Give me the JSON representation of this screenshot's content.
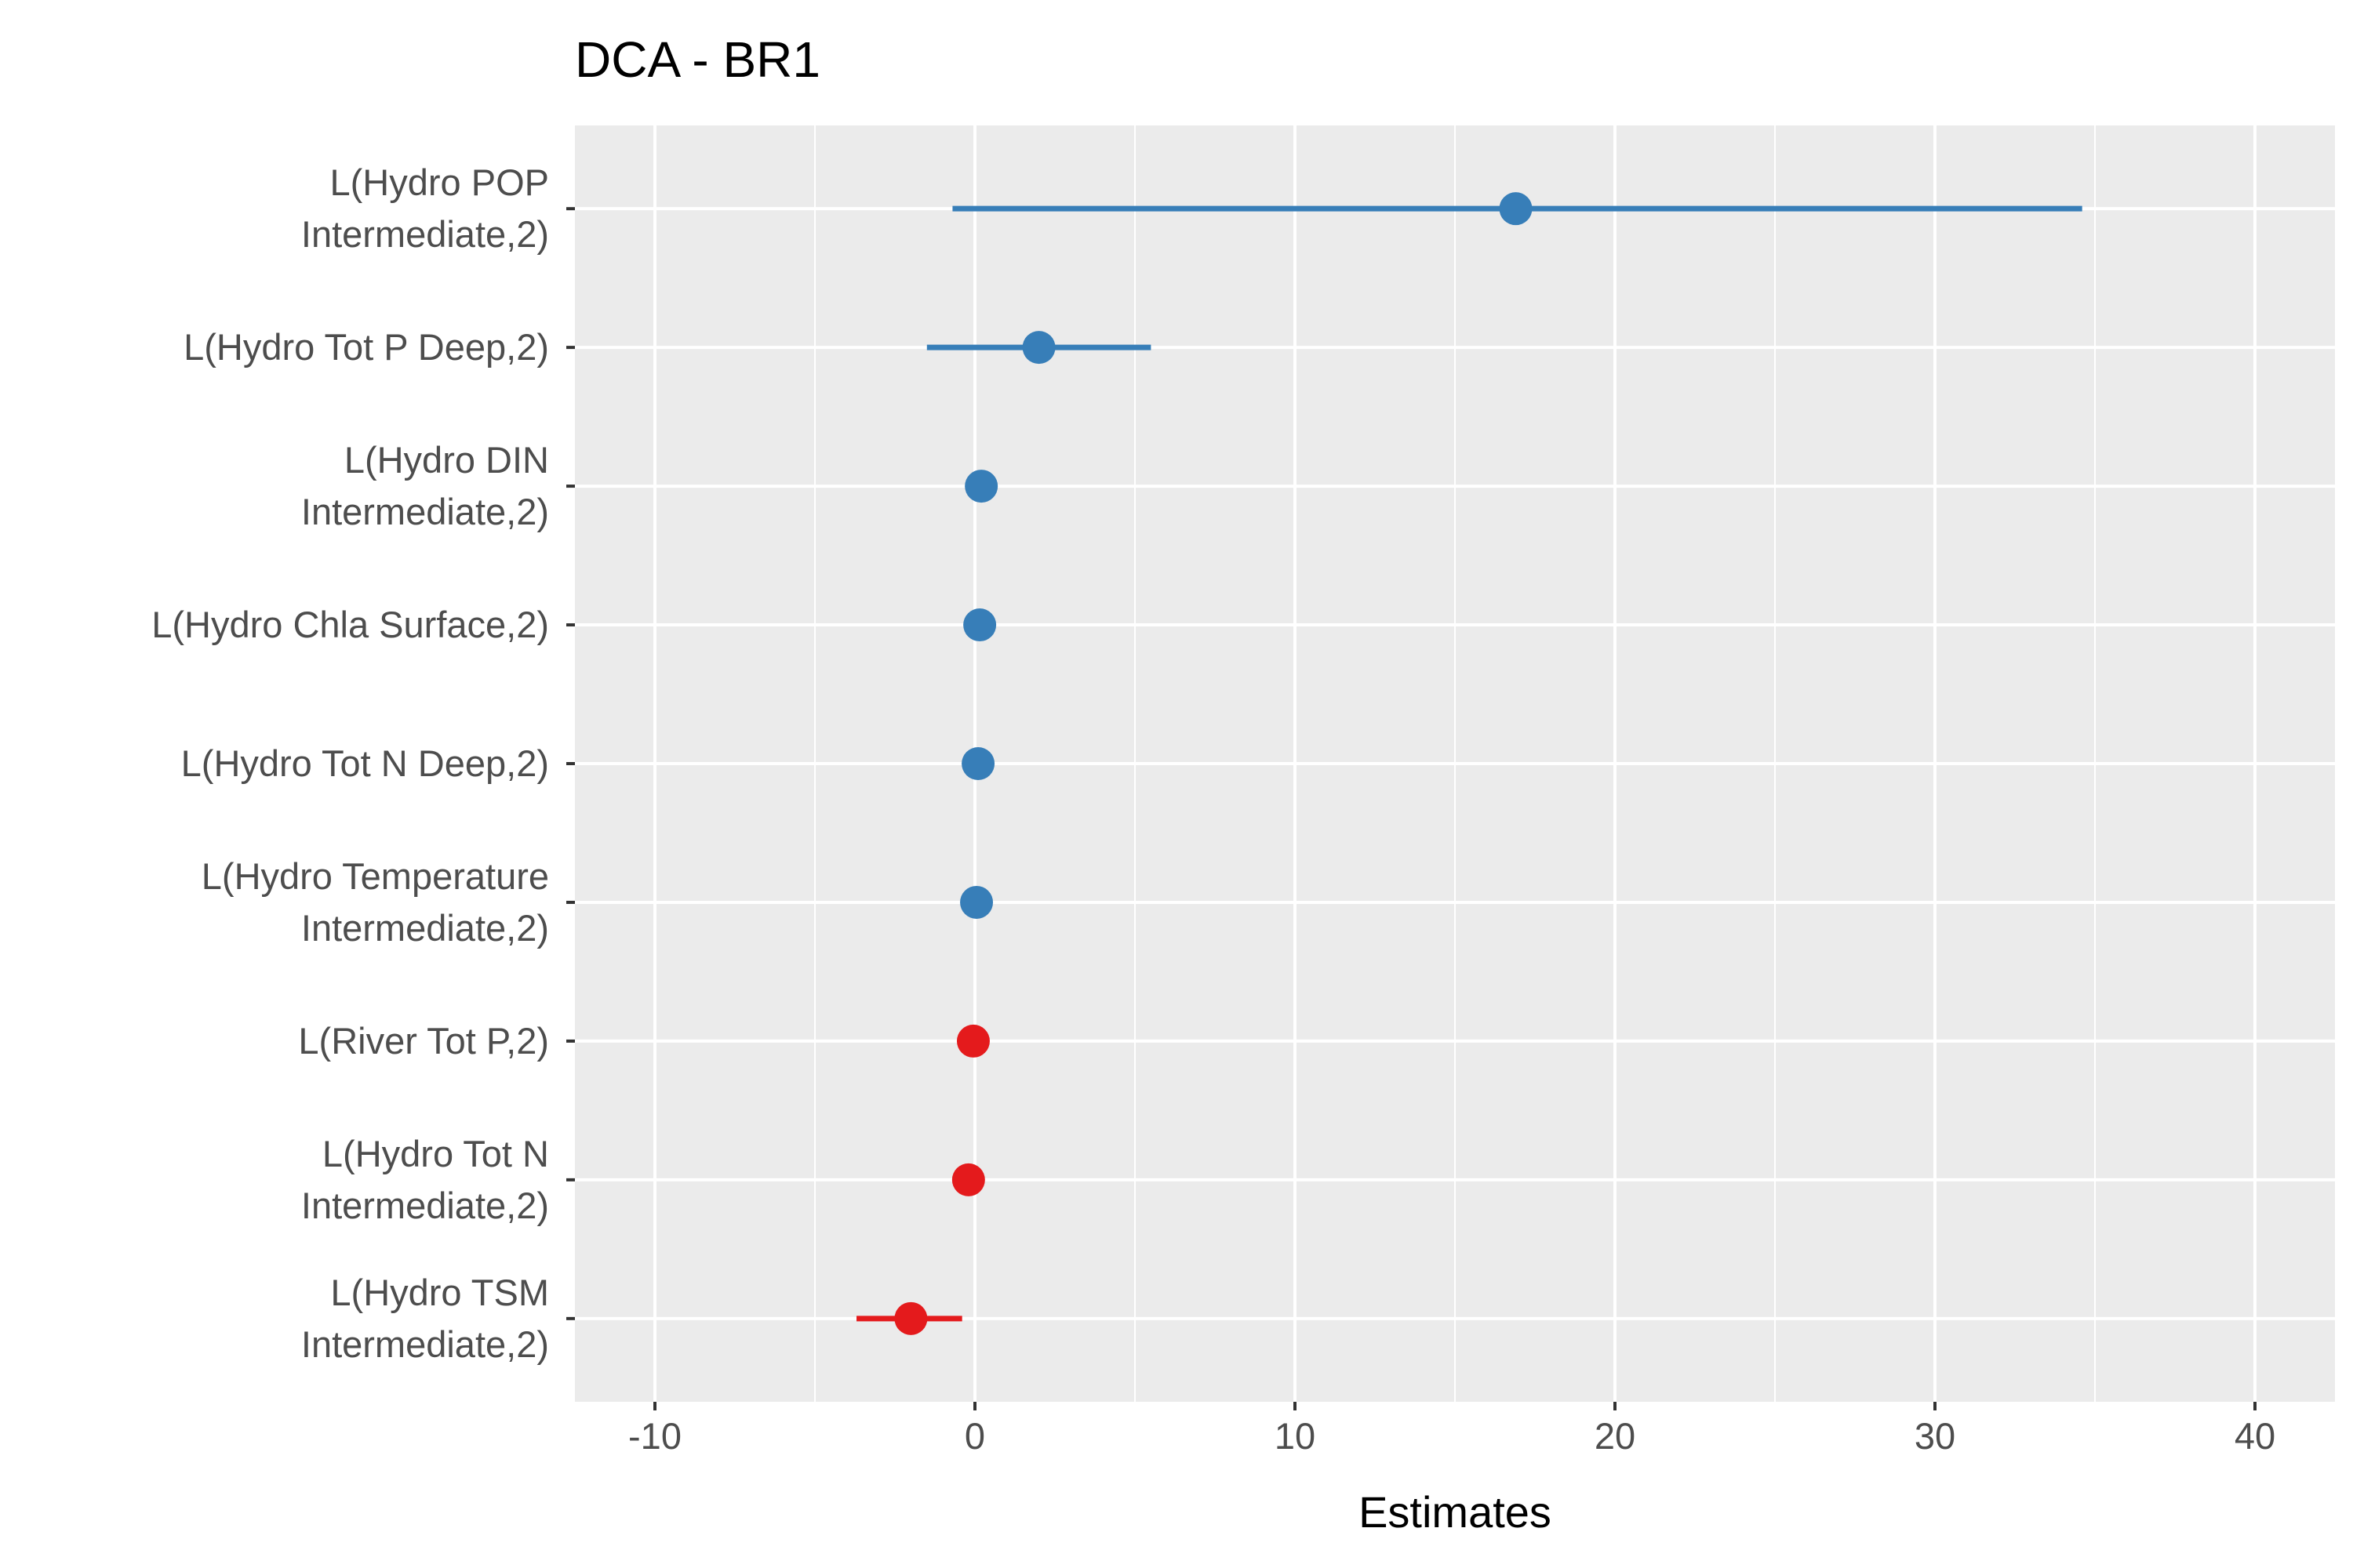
{
  "chart_data": {
    "type": "scatter",
    "subtype": "coefficient-plot",
    "title": "DCA - BR1",
    "xlabel": "Estimates",
    "ylabel": "",
    "xlim": [
      -12.5,
      42.5
    ],
    "xticks": [
      -10,
      0,
      10,
      20,
      30,
      40
    ],
    "xtick_labels": [
      "-10",
      "0",
      "10",
      "20",
      "30",
      "40"
    ],
    "grid": true,
    "legend": "none",
    "colors": {
      "positive": "#377EB8",
      "negative": "#E41A1C",
      "panel": "#EBEBEB",
      "grid": "#FFFFFF"
    },
    "points": [
      {
        "label": [
          "L(Hydro POP",
          "Intermediate,2)"
        ],
        "estimate": 16.9,
        "ci_low": -0.7,
        "ci_high": 34.6,
        "sign": "positive"
      },
      {
        "label": [
          "L(Hydro Tot P Deep,2)"
        ],
        "estimate": 2.0,
        "ci_low": -1.5,
        "ci_high": 5.5,
        "sign": "positive"
      },
      {
        "label": [
          "L(Hydro DIN",
          "Intermediate,2)"
        ],
        "estimate": 0.2,
        "ci_low": 0.1,
        "ci_high": 0.3,
        "sign": "positive"
      },
      {
        "label": [
          "L(Hydro Chla Surface,2)"
        ],
        "estimate": 0.15,
        "ci_low": 0.05,
        "ci_high": 0.25,
        "sign": "positive"
      },
      {
        "label": [
          "L(Hydro Tot N Deep,2)"
        ],
        "estimate": 0.1,
        "ci_low": 0.0,
        "ci_high": 0.2,
        "sign": "positive"
      },
      {
        "label": [
          "L(Hydro Temperature",
          "Intermediate,2)"
        ],
        "estimate": 0.05,
        "ci_low": -0.05,
        "ci_high": 0.15,
        "sign": "positive"
      },
      {
        "label": [
          "L(River Tot P,2)"
        ],
        "estimate": -0.05,
        "ci_low": -0.15,
        "ci_high": 0.05,
        "sign": "negative"
      },
      {
        "label": [
          "L(Hydro Tot N",
          "Intermediate,2)"
        ],
        "estimate": -0.2,
        "ci_low": -0.35,
        "ci_high": -0.05,
        "sign": "negative"
      },
      {
        "label": [
          "L(Hydro TSM",
          "Intermediate,2)"
        ],
        "estimate": -2.0,
        "ci_low": -3.7,
        "ci_high": -0.4,
        "sign": "negative"
      }
    ]
  }
}
